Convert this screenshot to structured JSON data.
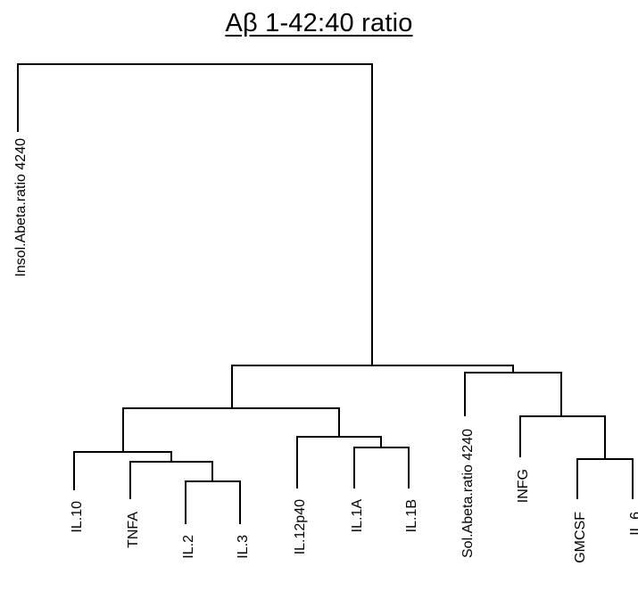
{
  "title": "Aβ 1-42:40 ratio",
  "labels": {
    "insol_abeta": "Insol.Abeta.ratio 4240",
    "il10": "IL.10",
    "tnfa": "TNFA",
    "il2": "IL.2",
    "il3": "IL.3",
    "il12p40": "IL.12p40",
    "il1a": "IL.1A",
    "il1b": "IL.1B",
    "sol_abeta": "Sol.Abeta.ratio 4240",
    "infg": "INFG",
    "gmcsf": "GMCSF",
    "il6": "IL.6"
  },
  "colors": {
    "line": "#000000",
    "background": "#ffffff",
    "text": "#000000"
  }
}
